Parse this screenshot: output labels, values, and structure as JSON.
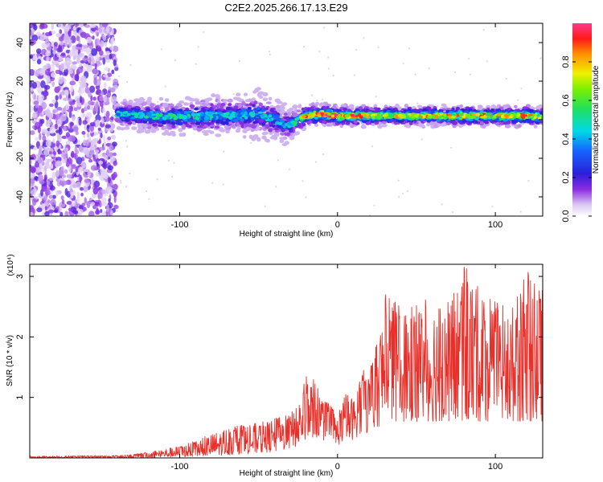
{
  "title": "C2E2.2025.266.17.13.E29",
  "chart_data": [
    {
      "type": "heatmap",
      "name": "spectrogram",
      "xlabel": "Height of straight line (km)",
      "ylabel": "Frequency (Hz)",
      "xlim": [
        -195,
        130
      ],
      "ylim": [
        -50,
        50
      ],
      "x_ticks": [
        -100,
        0,
        100
      ],
      "x_tick_labels": [
        "-100",
        "0",
        "100"
      ],
      "y_ticks": [
        -40,
        -20,
        0,
        20,
        40
      ],
      "y_tick_labels": [
        "-40",
        "-20",
        "0",
        "20",
        "40"
      ],
      "colorbar": {
        "label": "Normalized spectral amplitude",
        "range": [
          0,
          1
        ],
        "ticks": [
          0,
          0.2,
          0.4,
          0.6,
          0.8
        ],
        "tick_labels": [
          "0.0",
          "0.2",
          "0.4",
          "0.6",
          "0.8"
        ]
      },
      "noise_region_x": [
        -195,
        -140
      ],
      "signal_band": {
        "x": [
          -140,
          -120,
          -100,
          -80,
          -60,
          -50,
          -40,
          -35,
          -30,
          -25,
          -20,
          -10,
          0,
          20,
          40,
          60,
          80,
          100,
          120,
          130
        ],
        "center_hz": [
          3,
          2,
          1.5,
          2,
          2,
          3,
          0,
          -2,
          -3,
          0,
          2,
          3,
          2,
          2,
          2,
          2,
          2,
          2,
          2,
          1.5
        ],
        "half_width_hz": [
          4,
          5,
          5,
          6,
          6,
          7,
          6,
          6,
          5,
          4,
          3,
          3,
          3,
          3,
          3,
          3,
          3,
          3,
          3,
          3
        ],
        "peak_amplitude": [
          0.5,
          0.55,
          0.55,
          0.5,
          0.5,
          0.45,
          0.5,
          0.4,
          0.45,
          0.6,
          0.9,
          0.95,
          1.0,
          0.85,
          0.8,
          0.85,
          0.9,
          0.85,
          0.95,
          0.7
        ]
      }
    },
    {
      "type": "line",
      "name": "snr",
      "xlabel": "Height of straight line (km)",
      "ylabel": "SNR (10 * v/v)",
      "y_multiplier": "(x10⁴)",
      "xlim": [
        -195,
        130
      ],
      "ylim": [
        0,
        3.2
      ],
      "x_ticks": [
        -100,
        0,
        100
      ],
      "x_tick_labels": [
        "-100",
        "0",
        "100"
      ],
      "y_ticks": [
        1,
        2,
        3
      ],
      "y_tick_labels": [
        "1",
        "2",
        "3"
      ],
      "color": "#e8302a",
      "envelope": {
        "x": [
          -195,
          -140,
          -130,
          -120,
          -100,
          -90,
          -80,
          -70,
          -60,
          -50,
          -40,
          -30,
          -25,
          -20,
          -15,
          -10,
          -5,
          0,
          5,
          10,
          15,
          20,
          25,
          30,
          40,
          50,
          60,
          70,
          80,
          90,
          100,
          110,
          120,
          130
        ],
        "upper": [
          0.03,
          0.04,
          0.06,
          0.1,
          0.2,
          0.28,
          0.4,
          0.5,
          0.55,
          0.58,
          0.65,
          0.75,
          0.9,
          1.35,
          1.3,
          1.0,
          0.9,
          0.7,
          1.1,
          1.0,
          1.45,
          1.5,
          1.9,
          2.8,
          2.5,
          2.6,
          2.7,
          2.6,
          3.2,
          2.8,
          2.6,
          2.5,
          3.1,
          2.8
        ],
        "lower": [
          0.0,
          0.0,
          0.0,
          0.0,
          0.02,
          0.02,
          0.04,
          0.05,
          0.06,
          0.08,
          0.1,
          0.15,
          0.2,
          0.3,
          0.35,
          0.3,
          0.25,
          0.2,
          0.3,
          0.3,
          0.4,
          0.4,
          0.5,
          0.6,
          0.6,
          0.6,
          0.6,
          0.6,
          0.6,
          0.6,
          0.6,
          0.6,
          0.6,
          0.6
        ]
      }
    }
  ]
}
